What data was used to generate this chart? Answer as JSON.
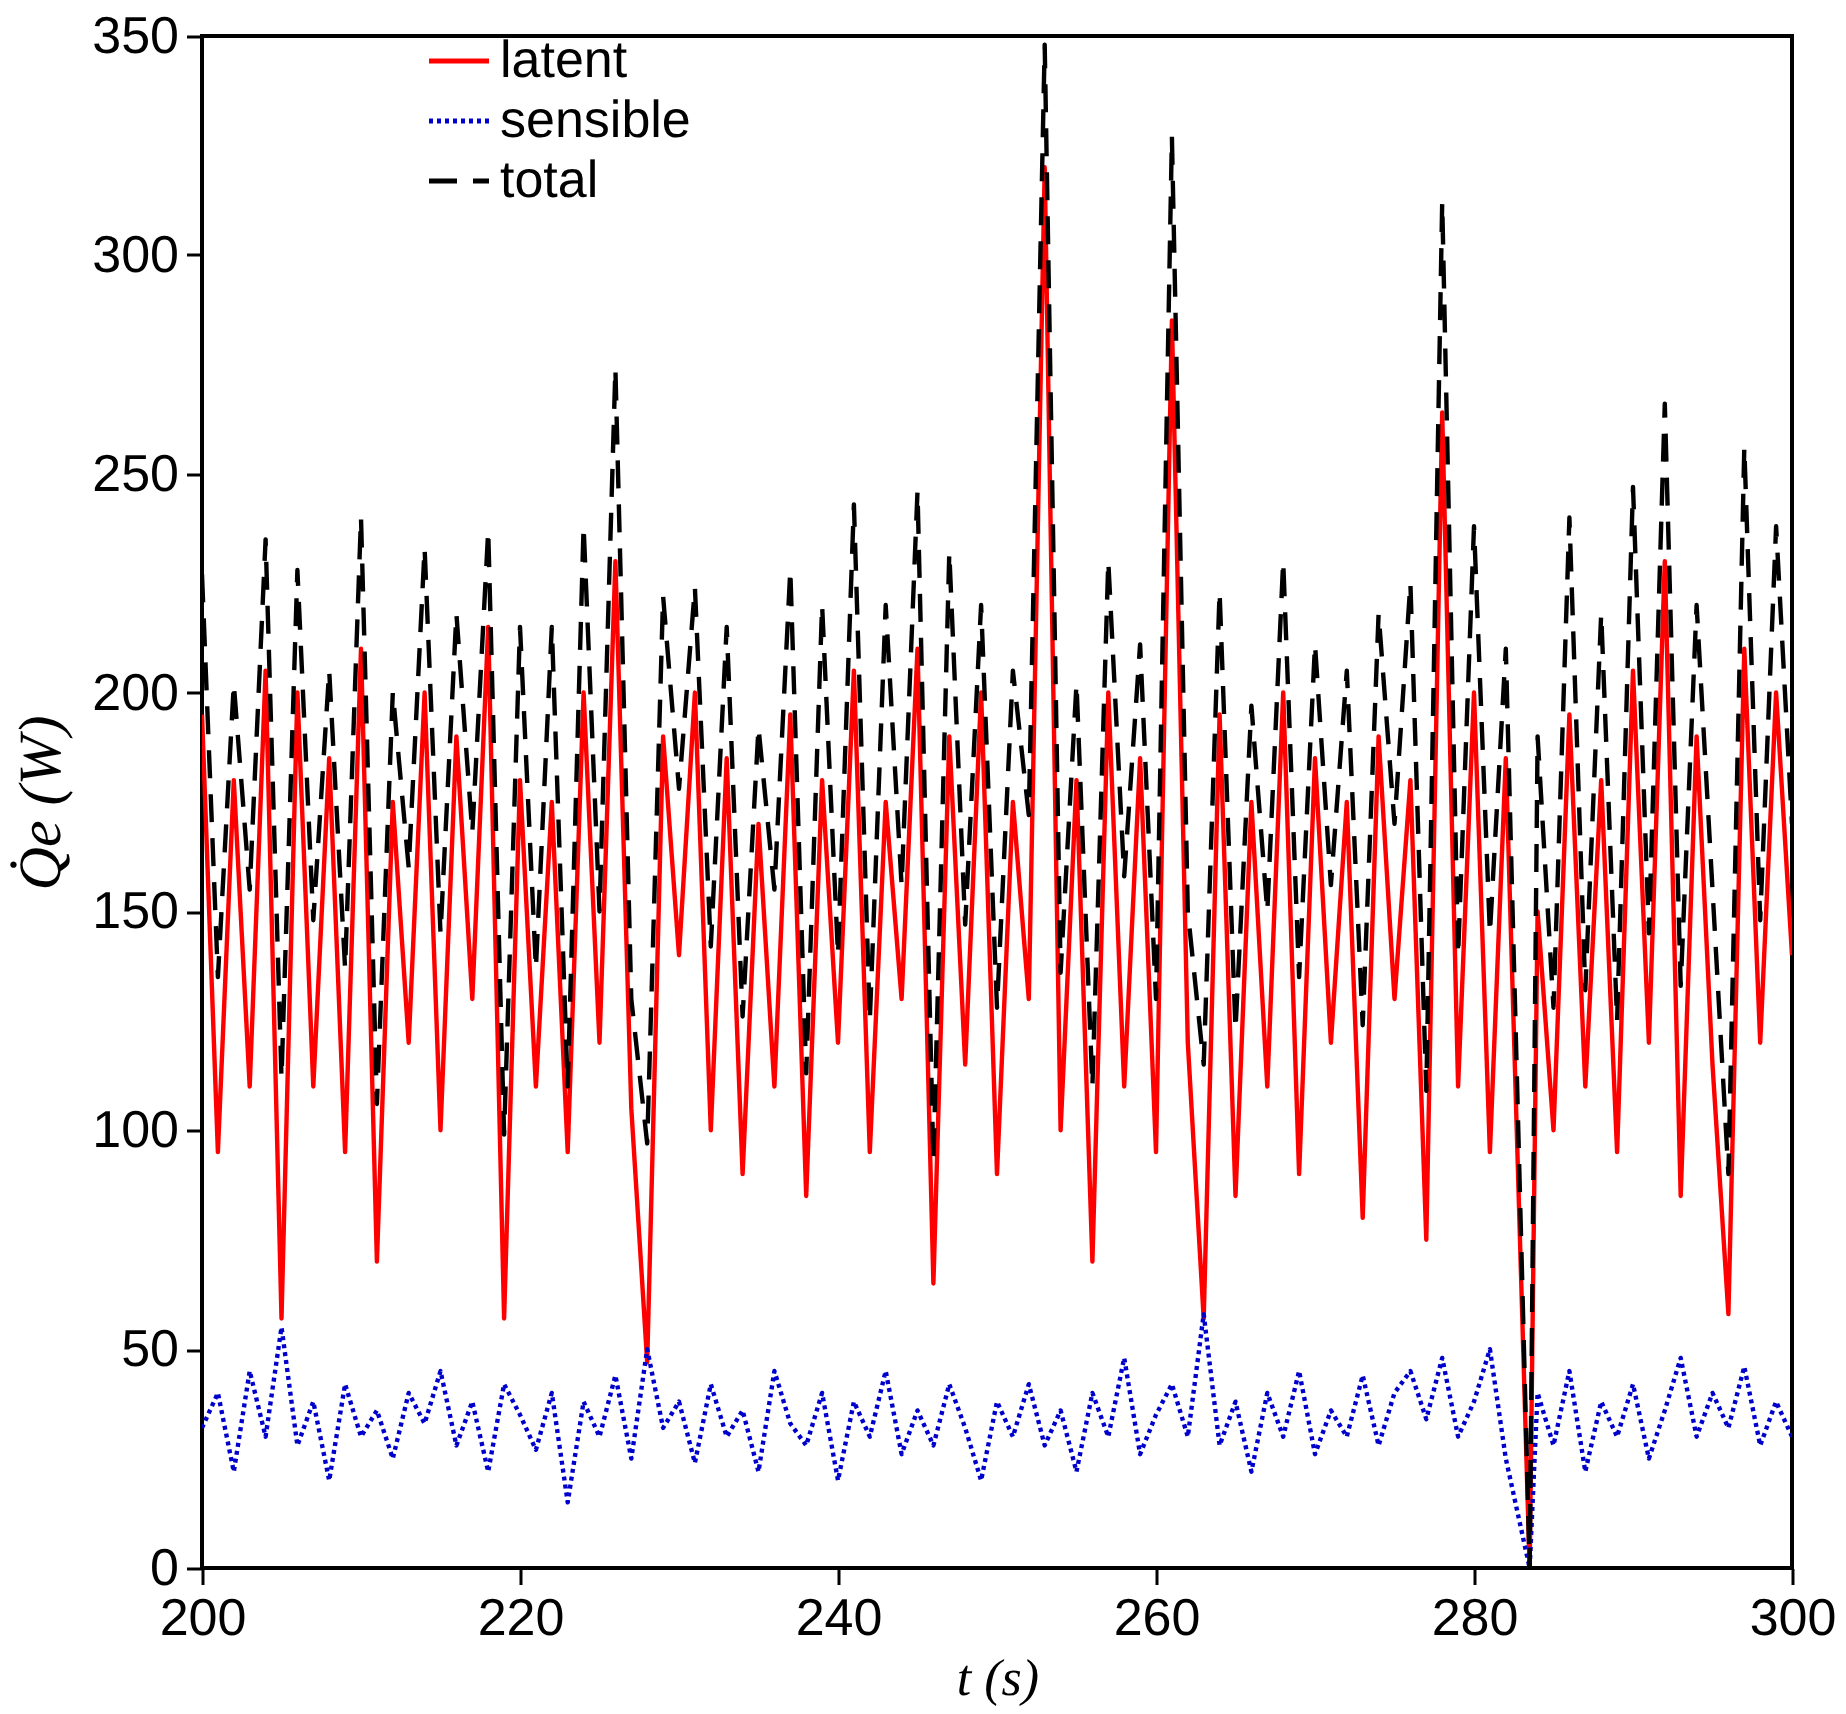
{
  "chart_data": {
    "type": "line",
    "xlabel": "t (s)",
    "ylabel": "Q̇e (W)",
    "x": [
      200,
      201,
      202,
      203,
      204,
      205,
      206,
      207,
      208,
      209,
      210,
      211,
      212,
      213,
      214,
      215,
      216,
      217,
      218,
      219,
      220,
      221,
      222,
      223,
      224,
      225,
      226,
      227,
      228,
      229,
      230,
      231,
      232,
      233,
      234,
      235,
      236,
      237,
      238,
      239,
      240,
      241,
      242,
      243,
      244,
      245,
      246,
      247,
      248,
      249,
      250,
      251,
      252,
      253,
      254,
      255,
      256,
      257,
      258,
      259,
      260,
      261,
      262,
      263,
      264,
      265,
      266,
      267,
      268,
      269,
      270,
      271,
      272,
      273,
      274,
      275,
      276,
      277,
      278,
      279,
      280,
      281,
      282,
      283.5,
      284,
      285,
      286,
      287,
      288,
      289,
      290,
      291,
      292,
      293,
      294,
      295,
      296,
      297,
      298,
      299,
      300
    ],
    "series": [
      {
        "name": "latent",
        "color": "#ff0000",
        "line_style": "solid",
        "values": [
          195,
          95,
          180,
          110,
          205,
          57,
          200,
          110,
          185,
          95,
          210,
          70,
          175,
          120,
          200,
          100,
          190,
          130,
          215,
          57,
          180,
          110,
          175,
          95,
          200,
          120,
          230,
          105,
          47,
          190,
          140,
          200,
          100,
          185,
          90,
          170,
          110,
          195,
          85,
          180,
          120,
          205,
          95,
          175,
          130,
          210,
          65,
          190,
          115,
          200,
          90,
          175,
          130,
          320,
          100,
          180,
          70,
          200,
          110,
          185,
          95,
          285,
          120,
          57,
          195,
          85,
          175,
          110,
          200,
          90,
          185,
          120,
          175,
          80,
          190,
          130,
          180,
          75,
          264,
          110,
          200,
          95,
          185,
          0,
          150,
          100,
          195,
          110,
          180,
          95,
          205,
          120,
          230,
          85,
          190,
          115,
          58,
          210,
          120,
          200,
          140
        ]
      },
      {
        "name": "sensible",
        "color": "#0000cc",
        "line_style": "dotted",
        "values": [
          32,
          40,
          22,
          45,
          30,
          55,
          28,
          38,
          20,
          42,
          30,
          36,
          25,
          40,
          33,
          45,
          28,
          38,
          22,
          42,
          35,
          27,
          40,
          15,
          38,
          30,
          44,
          25,
          50,
          32,
          38,
          24,
          42,
          30,
          36,
          22,
          45,
          33,
          28,
          40,
          20,
          38,
          30,
          45,
          26,
          36,
          28,
          42,
          32,
          20,
          38,
          30,
          42,
          28,
          36,
          22,
          40,
          30,
          48,
          26,
          35,
          42,
          30,
          58,
          28,
          38,
          22,
          40,
          30,
          45,
          26,
          36,
          30,
          44,
          28,
          40,
          45,
          34,
          48,
          30,
          38,
          50,
          25,
          0,
          40,
          28,
          45,
          22,
          38,
          30,
          42,
          25,
          36,
          48,
          30,
          40,
          32,
          46,
          28,
          38,
          30
        ]
      },
      {
        "name": "total",
        "color": "#000000",
        "line_style": "dashed",
        "values": [
          227,
          135,
          202,
          155,
          235,
          112,
          228,
          148,
          205,
          137,
          240,
          106,
          200,
          160,
          233,
          145,
          218,
          168,
          237,
          99,
          215,
          137,
          215,
          110,
          238,
          150,
          274,
          130,
          97,
          222,
          178,
          224,
          142,
          215,
          126,
          192,
          155,
          228,
          113,
          220,
          140,
          243,
          125,
          220,
          156,
          246,
          93,
          232,
          147,
          220,
          128,
          205,
          172,
          348,
          136,
          202,
          110,
          230,
          158,
          211,
          130,
          327,
          150,
          115,
          223,
          123,
          197,
          150,
          230,
          135,
          211,
          156,
          205,
          124,
          218,
          170,
          225,
          109,
          312,
          140,
          238,
          145,
          210,
          0,
          190,
          128,
          240,
          132,
          218,
          125,
          247,
          145,
          266,
          133,
          220,
          155,
          90,
          256,
          148,
          238,
          170
        ]
      }
    ],
    "xlim": [
      200,
      300
    ],
    "xticks": [
      200,
      220,
      240,
      260,
      280,
      300
    ],
    "ylim": [
      0,
      350
    ],
    "yticks": [
      0,
      50,
      100,
      150,
      200,
      250,
      300,
      350
    ],
    "grid": false,
    "legend": "top left",
    "marker": "none"
  }
}
